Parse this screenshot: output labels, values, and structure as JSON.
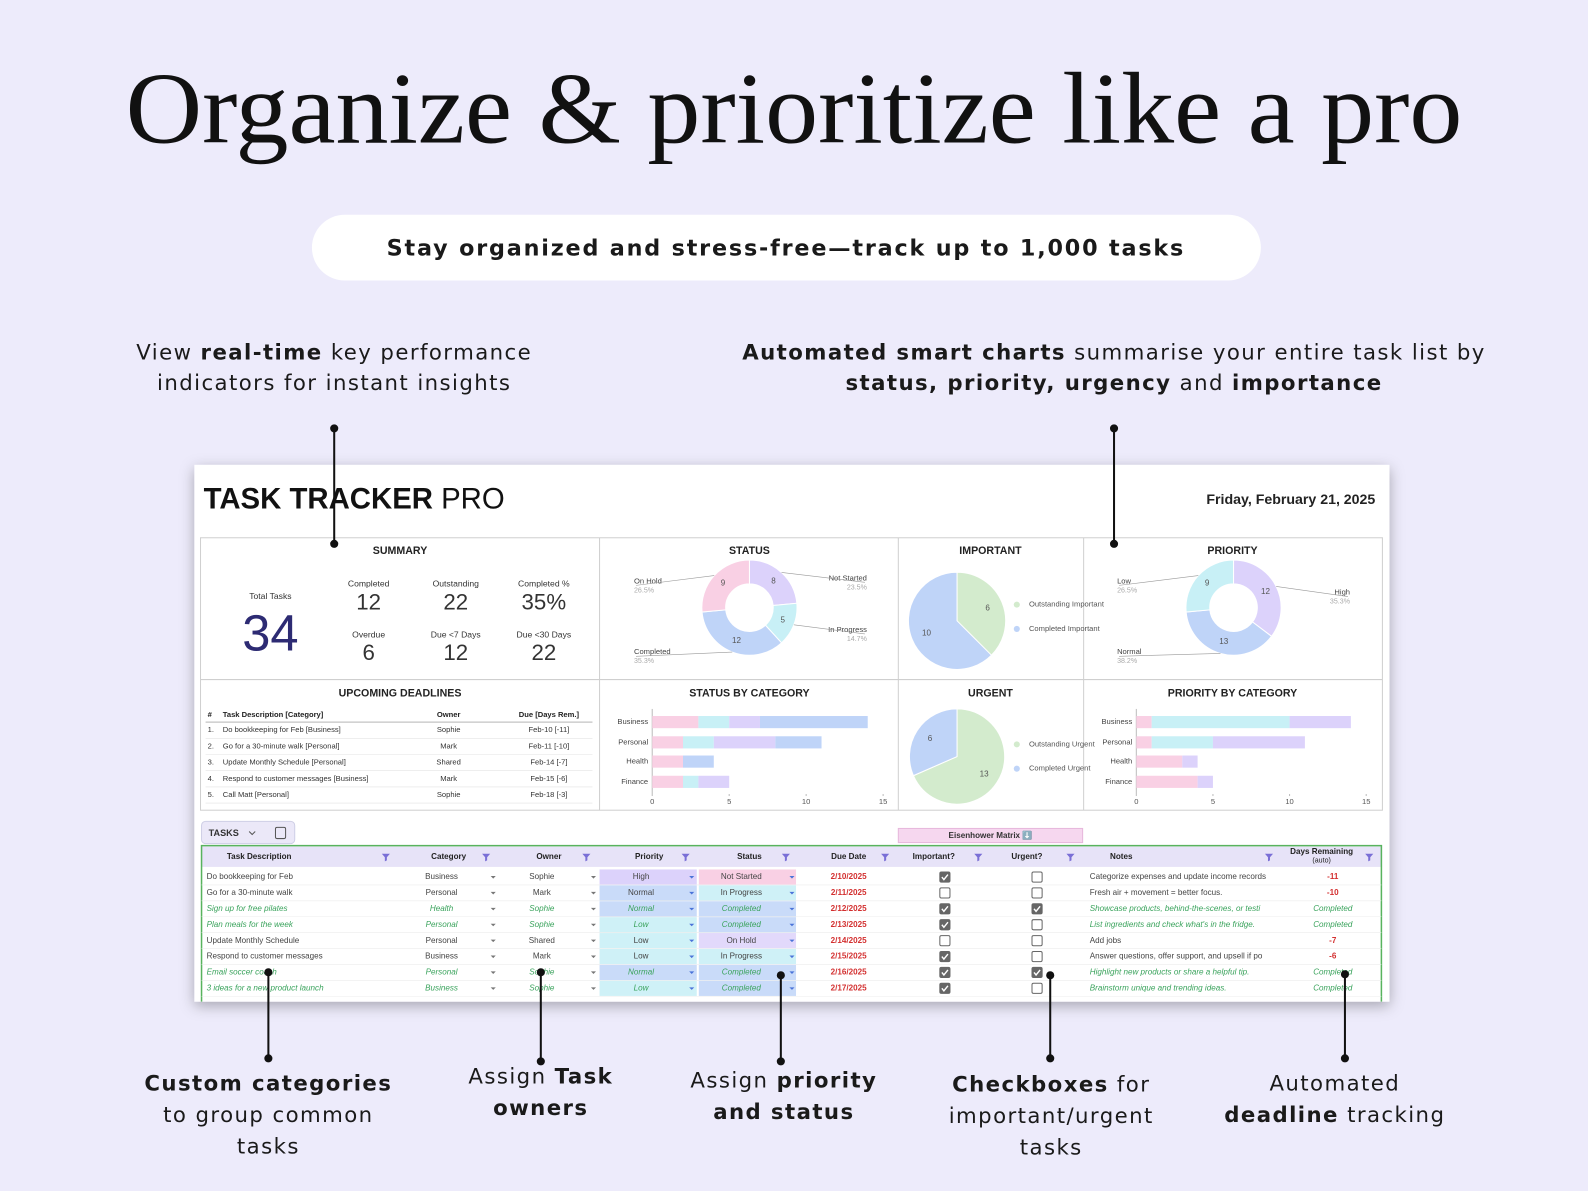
{
  "header": {
    "title": "Organize & prioritize like a pro",
    "subtitle": "Stay organized and stress-free—track up to 1,000 tasks"
  },
  "callouts": {
    "top": [
      {
        "lines": [
          [
            {
              "text": "View ",
              "bold": false
            },
            {
              "text": "real-time",
              "bold": true
            },
            {
              "text": " key performance",
              "bold": false
            }
          ],
          [
            {
              "text": "indicators for instant insights",
              "bold": false
            }
          ]
        ]
      },
      {
        "lines": [
          [
            {
              "text": "Automated smart charts",
              "bold": true
            },
            {
              "text": " summarise your entire task list by",
              "bold": false
            }
          ],
          [
            {
              "text": "status, priority, urgency",
              "bold": true
            },
            {
              "text": " and ",
              "bold": false
            },
            {
              "text": "importance",
              "bold": true
            }
          ]
        ]
      }
    ],
    "bottom": [
      {
        "lines": [
          [
            {
              "text": "Custom categories",
              "bold": true
            }
          ],
          [
            {
              "text": "to group common",
              "bold": false
            }
          ],
          [
            {
              "text": "tasks",
              "bold": false
            }
          ]
        ]
      },
      {
        "lines": [
          [
            {
              "text": "Assign ",
              "bold": false
            },
            {
              "text": "Task",
              "bold": true
            }
          ],
          [
            {
              "text": "owners",
              "bold": true
            }
          ]
        ]
      },
      {
        "lines": [
          [
            {
              "text": "Assign ",
              "bold": false
            },
            {
              "text": "priority",
              "bold": true
            }
          ],
          [
            {
              "text": "and status",
              "bold": true
            }
          ]
        ]
      },
      {
        "lines": [
          [
            {
              "text": "Checkboxes",
              "bold": true
            },
            {
              "text": " for",
              "bold": false
            }
          ],
          [
            {
              "text": "important/urgent",
              "bold": false
            }
          ],
          [
            {
              "text": "tasks",
              "bold": false
            }
          ]
        ]
      },
      {
        "lines": [
          [
            {
              "text": "Automated",
              "bold": false
            }
          ],
          [
            {
              "text": "deadline",
              "bold": true
            },
            {
              "text": " tracking",
              "bold": false
            }
          ]
        ]
      }
    ]
  },
  "dashboard": {
    "title": "TASK TRACKER",
    "title_suffix": "PRO",
    "date": "Friday, February 21, 2025",
    "summary": {
      "heading": "SUMMARY",
      "total_label": "Total Tasks",
      "total": 34,
      "kpis": [
        {
          "label": "Completed",
          "value": 12
        },
        {
          "label": "Outstanding",
          "value": 22
        },
        {
          "label": "Completed %",
          "value": "35%"
        },
        {
          "label": "Overdue",
          "value": 6
        },
        {
          "label": "Due <7 Days",
          "value": 12
        },
        {
          "label": "Due <30 Days",
          "value": 22
        }
      ]
    },
    "status": {
      "type": "pie",
      "title": "STATUS",
      "donut": true,
      "categories": [
        "Not Started",
        "In Progress",
        "Completed",
        "On Hold"
      ],
      "values": [
        8,
        5,
        12,
        9
      ],
      "percent_labels": [
        "23.5%",
        "14.7%",
        "35.3%",
        "26.5%"
      ],
      "colors": [
        "#dcd2fb",
        "#c8f0f6",
        "#bfd4f8",
        "#f9d0e4"
      ]
    },
    "important": {
      "type": "pie",
      "title": "IMPORTANT",
      "donut": false,
      "categories": [
        "Outstanding Important",
        "Completed Important"
      ],
      "values": [
        6,
        10
      ],
      "colors": [
        "#d3ebcd",
        "#bfd4f8"
      ]
    },
    "priority": {
      "type": "pie",
      "title": "PRIORITY",
      "donut": true,
      "categories": [
        "High",
        "Normal",
        "Low"
      ],
      "values": [
        12,
        13,
        9
      ],
      "percent_labels": [
        "35.3%",
        "38.2%",
        "26.5%"
      ],
      "colors": [
        "#dcd2fb",
        "#bfd4f8",
        "#c8f0f6"
      ]
    },
    "status_by_category": {
      "type": "bar",
      "title": "STATUS BY CATEGORY",
      "orientation": "horizontal",
      "stacked": true,
      "categories": [
        "Business",
        "Personal",
        "Health",
        "Finance"
      ],
      "series": [
        {
          "color": "#f9d0e4",
          "values": [
            3,
            2,
            2,
            2
          ]
        },
        {
          "color": "#c8f0f6",
          "values": [
            2,
            2,
            0,
            1
          ]
        },
        {
          "color": "#dcd2fb",
          "values": [
            2,
            4,
            0,
            2
          ]
        },
        {
          "color": "#bfd4f8",
          "values": [
            7,
            3,
            2,
            0
          ]
        }
      ],
      "xlim": [
        0,
        15
      ],
      "xticks": [
        0,
        5,
        10,
        15
      ]
    },
    "urgent": {
      "type": "pie",
      "title": "URGENT",
      "donut": false,
      "categories": [
        "Outstanding Urgent",
        "Completed Urgent"
      ],
      "values": [
        13,
        6
      ],
      "colors": [
        "#d3ebcd",
        "#bfd4f8"
      ]
    },
    "priority_by_category": {
      "type": "bar",
      "title": "PRIORITY BY CATEGORY",
      "orientation": "horizontal",
      "stacked": true,
      "categories": [
        "Business",
        "Personal",
        "Health",
        "Finance"
      ],
      "series": [
        {
          "color": "#f9d0e4",
          "values": [
            1,
            1,
            3,
            4
          ]
        },
        {
          "color": "#c8f0f6",
          "values": [
            9,
            4,
            0,
            0
          ]
        },
        {
          "color": "#dcd2fb",
          "values": [
            4,
            6,
            1,
            1
          ]
        }
      ],
      "xlim": [
        0,
        15
      ],
      "xticks": [
        0,
        5,
        10,
        15
      ]
    },
    "deadlines": {
      "heading": "UPCOMING DEADLINES",
      "headers": [
        "#",
        "Task Description [Category]",
        "Owner",
        "Due [Days Rem.]"
      ],
      "rows": [
        [
          "1.",
          "Do bookkeeping for Feb  [Business]",
          "Sophie",
          "Feb-10  [-11]"
        ],
        [
          "2.",
          "Go for a 30-minute walk  [Personal]",
          "Mark",
          "Feb-11  [-10]"
        ],
        [
          "3.",
          "Update Monthly Schedule  [Personal]",
          "Shared",
          "Feb-14  [-7]"
        ],
        [
          "4.",
          "Respond to customer messages  [Business]",
          "Mark",
          "Feb-15  [-6]"
        ],
        [
          "5.",
          "Call Matt  [Personal]",
          "Sophie",
          "Feb-18  [-3]"
        ]
      ]
    },
    "tasks": {
      "tab": "TASKS",
      "matrix_label": "Eisenhower Matrix ⬇️",
      "columns": [
        [
          "Task Description"
        ],
        [
          "Category"
        ],
        [
          "Owner"
        ],
        [
          "Priority"
        ],
        [
          "Status"
        ],
        [
          "Due Date"
        ],
        [
          "Important?"
        ],
        [
          "Urgent?"
        ],
        [
          "Notes"
        ],
        [
          "Days Remaining",
          "(auto)"
        ]
      ],
      "priority_colors": {
        "High": "#dcd2fb",
        "Normal": "#c9dbf9",
        "Low": "#cff1f7"
      },
      "status_colors": {
        "Not Started": "#f9d0e4",
        "In Progress": "#cff1f7",
        "Completed": "#c9dbf9",
        "On Hold": "#e2d9fb"
      },
      "rows": [
        [
          "Do bookkeeping for Feb",
          "Business",
          "Sophie",
          "High",
          "Not Started",
          "2/10/2025",
          true,
          false,
          "Categorize expenses and update income records",
          -11
        ],
        [
          "Go for a 30-minute walk",
          "Personal",
          "Mark",
          "Normal",
          "In Progress",
          "2/11/2025",
          false,
          false,
          "Fresh air + movement = better focus.",
          -10
        ],
        [
          "Sign up for free pilates",
          "Health",
          "Sophie",
          "Normal",
          "Completed",
          "2/12/2025",
          true,
          true,
          "Showcase products, behind-the-scenes, or testi",
          "Completed"
        ],
        [
          "Plan meals for the week",
          "Personal",
          "Sophie",
          "Low",
          "Completed",
          "2/13/2025",
          true,
          false,
          "List ingredients and check what's in the fridge.",
          "Completed"
        ],
        [
          "Update Monthly Schedule",
          "Personal",
          "Shared",
          "Low",
          "On Hold",
          "2/14/2025",
          false,
          false,
          "Add jobs",
          -7
        ],
        [
          "Respond to customer messages",
          "Business",
          "Mark",
          "Low",
          "In Progress",
          "2/15/2025",
          true,
          false,
          "Answer questions, offer support, and upsell if po",
          -6
        ],
        [
          "Email soccer coach",
          "Personal",
          "Sophie",
          "Normal",
          "Completed",
          "2/16/2025",
          true,
          true,
          "Highlight new products or share a helpful tip.",
          "Completed"
        ],
        [
          "3 ideas for a new product launch",
          "Business",
          "Sophie",
          "Low",
          "Completed",
          "2/17/2025",
          true,
          false,
          "Brainstorm unique and trending ideas.",
          "Completed"
        ]
      ]
    }
  }
}
